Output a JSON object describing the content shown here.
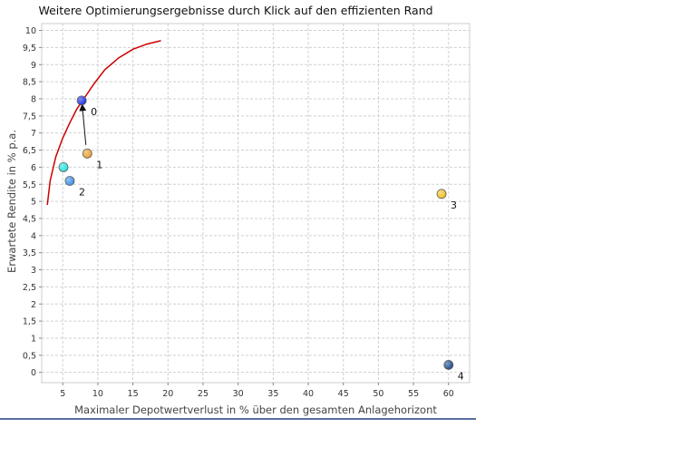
{
  "chart_data": {
    "type": "scatter",
    "title": "Weitere Optimierungsergebnisse durch Klick auf den effizienten Rand",
    "xlabel": "Maximaler Depotwertverlust in % über den gesamten Anlagehorizont",
    "ylabel": "Erwartete Rendite in % p.a.",
    "xlim": [
      2,
      63
    ],
    "ylim": [
      -0.3,
      10.2
    ],
    "x_ticks": [
      5,
      10,
      15,
      20,
      25,
      30,
      35,
      40,
      45,
      50,
      55,
      60
    ],
    "x_tick_labels": [
      "5",
      "10",
      "15",
      "20",
      "25",
      "30",
      "35",
      "40",
      "45",
      "50",
      "55",
      "60"
    ],
    "y_ticks": [
      0,
      0.5,
      1,
      1.5,
      2,
      2.5,
      3,
      3.5,
      4,
      4.5,
      5,
      5.5,
      6,
      6.5,
      7,
      7.5,
      8,
      8.5,
      9,
      9.5,
      10
    ],
    "y_tick_labels": [
      "0",
      "0,5",
      "1",
      "1,5",
      "2",
      "2,5",
      "3",
      "3,5",
      "4",
      "4,5",
      "5",
      "5,5",
      "6",
      "6,5",
      "7",
      "7,5",
      "8",
      "8,5",
      "9",
      "9,5",
      "10"
    ],
    "grid": true,
    "frontier": {
      "color": "#cc0000",
      "x": [
        2.8,
        3.2,
        4.0,
        5.0,
        6.0,
        7.0,
        8.0,
        9.5,
        11.0,
        13.0,
        15.0,
        17.0,
        19.0
      ],
      "y": [
        4.9,
        5.6,
        6.3,
        6.85,
        7.3,
        7.7,
        8.0,
        8.45,
        8.85,
        9.2,
        9.45,
        9.6,
        9.7
      ]
    },
    "points": [
      {
        "label": "0",
        "x": 7.7,
        "y": 7.95,
        "color": "#1a2ee0"
      },
      {
        "label": "1",
        "x": 8.5,
        "y": 6.4,
        "color": "#e8a030"
      },
      {
        "label": "",
        "x": 5.1,
        "y": 6.0,
        "color": "#22e0e0"
      },
      {
        "label": "2",
        "x": 6.0,
        "y": 5.6,
        "color": "#3a8ee6"
      },
      {
        "label": "3",
        "x": 59.0,
        "y": 5.22,
        "color": "#f0c020"
      },
      {
        "label": "4",
        "x": 60.0,
        "y": 0.22,
        "color": "#1e4a8c"
      }
    ],
    "arrow": {
      "from_x": 8.3,
      "from_y": 6.65,
      "to_x": 7.8,
      "to_y": 7.75
    },
    "footer_line_color": "#1e3f7a"
  }
}
